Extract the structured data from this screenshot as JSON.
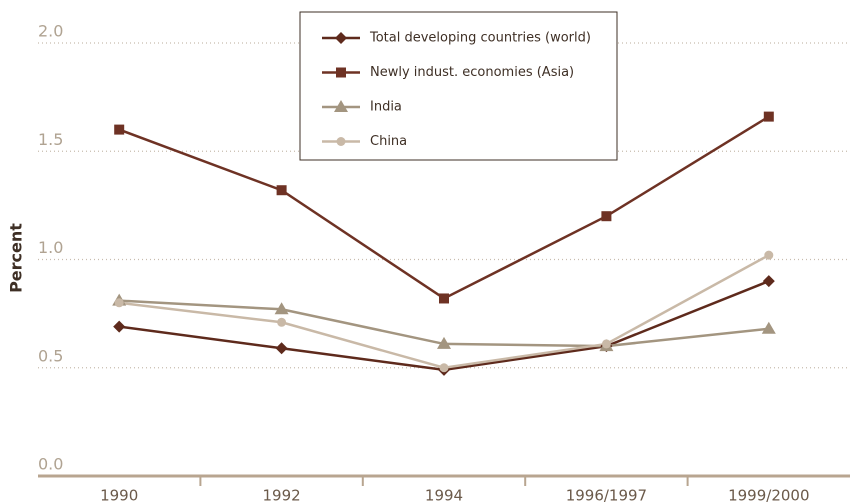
{
  "chart_data": {
    "type": "line",
    "y_label": "Percent",
    "categories": [
      "1990",
      "1992",
      "1994",
      "1996/1997",
      "1999/2000"
    ],
    "series": [
      {
        "name": "Total developing countries (world)",
        "color": "#5e2a1c",
        "marker": "diamond",
        "values": [
          0.69,
          0.59,
          0.49,
          0.6,
          0.9
        ]
      },
      {
        "name": "Newly indust. economies (Asia)",
        "color": "#6e3224",
        "marker": "square",
        "values": [
          1.6,
          1.32,
          0.82,
          1.2,
          1.66
        ]
      },
      {
        "name": "India",
        "color": "#a39580",
        "marker": "triangle",
        "values": [
          0.81,
          0.77,
          0.61,
          0.6,
          0.68
        ]
      },
      {
        "name": "China",
        "color": "#c9b9a7",
        "marker": "circle",
        "values": [
          0.8,
          0.71,
          0.5,
          0.61,
          1.02
        ]
      }
    ],
    "ylim": [
      0,
      2
    ],
    "yticks": [
      {
        "value": 0,
        "label": "0.0"
      },
      {
        "value": 0.5,
        "label": "0.5"
      },
      {
        "value": 1,
        "label": "1.0"
      },
      {
        "value": 1.5,
        "label": "1.5"
      },
      {
        "value": 2,
        "label": "2.0"
      }
    ],
    "grid": true
  }
}
